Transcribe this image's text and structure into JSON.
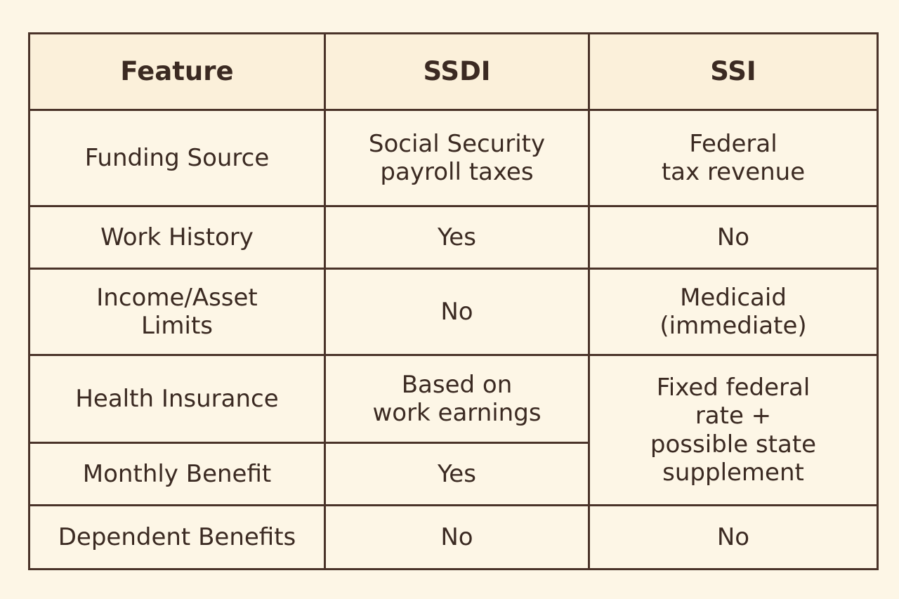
{
  "table": {
    "headers": {
      "feature": "Feature",
      "ssdi": "SSDI",
      "ssi": "SSI"
    },
    "rows": {
      "funding_source": {
        "feature": "Funding Source",
        "ssdi": [
          "Social Security",
          "payroll taxes"
        ],
        "ssi": [
          "Federal",
          "tax revenue"
        ]
      },
      "work_history": {
        "feature": "Work History",
        "ssdi": "Yes",
        "ssi": "No"
      },
      "income_asset_limits": {
        "feature": [
          "Income/Asset",
          "Limits"
        ],
        "ssdi": "No",
        "ssi": [
          "Medicaid",
          "(immediate)"
        ]
      },
      "health_insurance": {
        "feature": "Health Insurance",
        "ssdi": [
          "Based on",
          "work earnings"
        ]
      },
      "monthly_benefit": {
        "feature": "Monthly Benefit",
        "ssdi": "Yes"
      },
      "ssi_health_monthly_merged": [
        "Fixed federal",
        "rate +",
        "possible state",
        "supplement"
      ],
      "dependent_benefits": {
        "feature": "Dependent Benefits",
        "ssdi": "No",
        "ssi": "No"
      }
    }
  }
}
